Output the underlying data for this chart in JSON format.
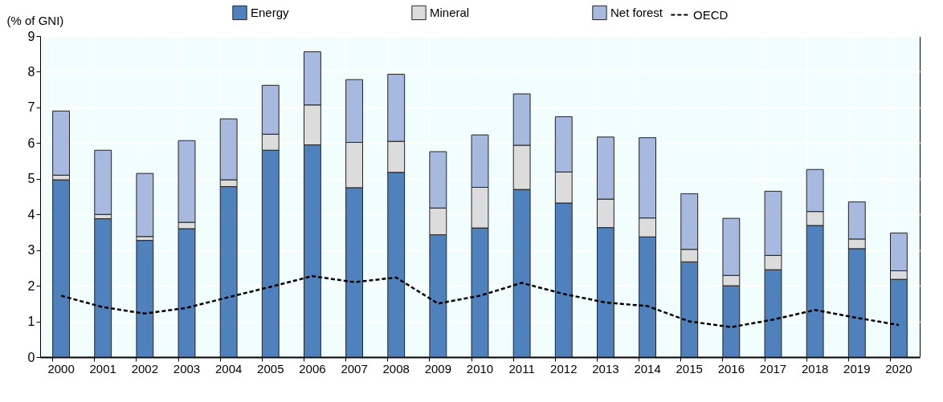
{
  "chart_data": {
    "type": "bar",
    "ylabel": "(% of GNI)",
    "stacked": true,
    "legend": "top",
    "grid": true,
    "categories": [
      "2000",
      "2001",
      "2002",
      "2003",
      "2004",
      "2005",
      "2006",
      "2007",
      "2008",
      "2009",
      "2010",
      "2011",
      "2012",
      "2013",
      "2014",
      "2015",
      "2016",
      "2017",
      "2018",
      "2019",
      "2020"
    ],
    "ylim": [
      0,
      9
    ],
    "yticks": [
      0,
      1,
      2,
      3,
      4,
      5,
      6,
      7,
      8,
      9
    ],
    "series": [
      {
        "name": "Energy",
        "color": "#4f81bd",
        "values": [
          4.97,
          3.88,
          3.27,
          3.6,
          4.78,
          5.8,
          5.95,
          4.75,
          5.18,
          3.43,
          3.62,
          4.7,
          4.32,
          3.63,
          3.37,
          2.67,
          2.0,
          2.45,
          3.69,
          3.04,
          2.18
        ]
      },
      {
        "name": "Mineral",
        "color": "#dcdcdc",
        "values": [
          0.13,
          0.12,
          0.11,
          0.18,
          0.19,
          0.45,
          1.12,
          1.27,
          0.87,
          0.75,
          1.14,
          1.24,
          0.87,
          0.8,
          0.53,
          0.35,
          0.29,
          0.4,
          0.39,
          0.27,
          0.24
        ]
      },
      {
        "name": "Net forest",
        "color": "#a8b9e0",
        "values": [
          1.8,
          1.8,
          1.77,
          2.29,
          1.71,
          1.37,
          1.49,
          1.76,
          1.88,
          1.58,
          1.47,
          1.44,
          1.55,
          1.74,
          2.25,
          1.56,
          1.6,
          1.8,
          1.18,
          1.04,
          1.06
        ]
      },
      {
        "name": "OECD",
        "type": "line",
        "line_style": "dashed",
        "color": "#000000",
        "values": [
          1.72,
          1.4,
          1.22,
          1.38,
          1.68,
          1.97,
          2.27,
          2.1,
          2.23,
          1.5,
          1.72,
          2.08,
          1.77,
          1.53,
          1.43,
          1.0,
          0.84,
          1.05,
          1.32,
          1.1,
          0.9
        ]
      }
    ]
  }
}
